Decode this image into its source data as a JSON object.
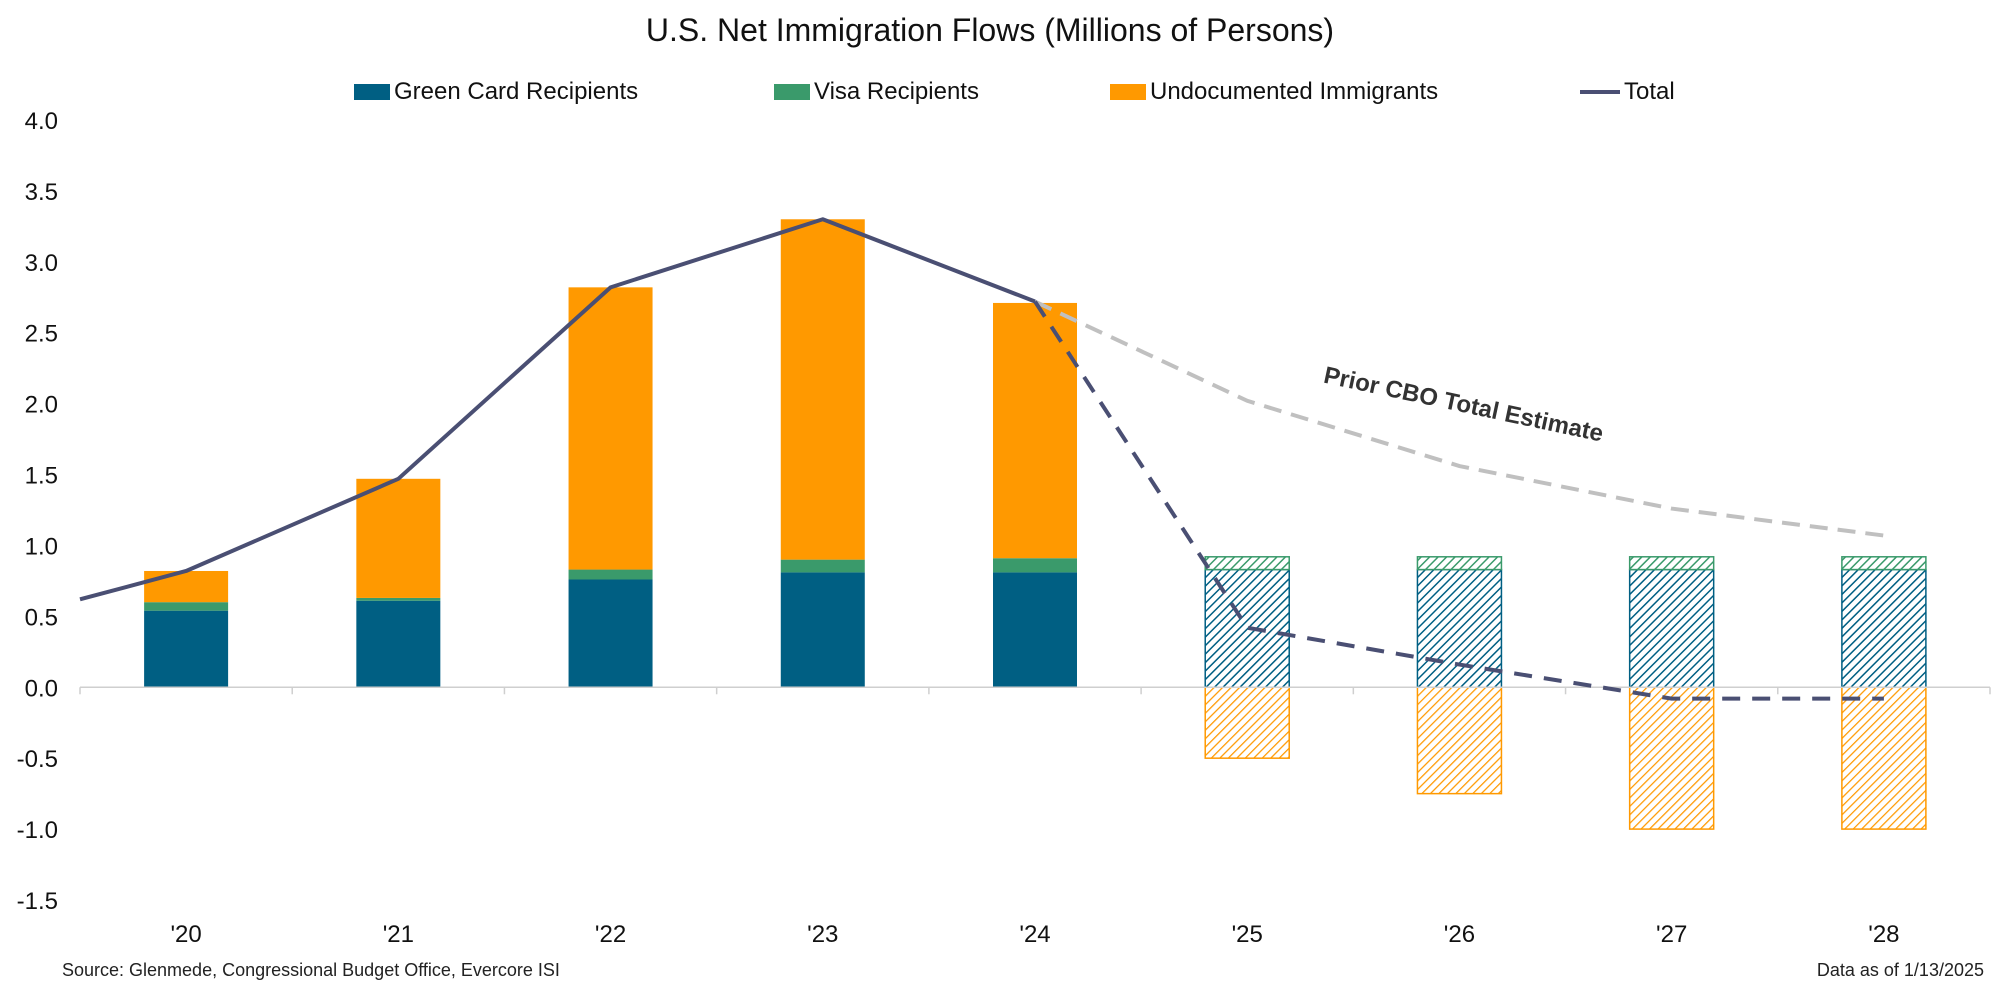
{
  "chart_data": {
    "type": "bar",
    "title": "U.S. Net Immigration Flows (Millions of Persons)",
    "categories": [
      "'20",
      "'21",
      "'22",
      "'23",
      "'24",
      "'25",
      "'26",
      "'27",
      "'28"
    ],
    "ylim": [
      -1.5,
      4.0
    ],
    "yticks": [
      "4.0",
      "3.5",
      "3.0",
      "2.5",
      "2.0",
      "1.5",
      "1.0",
      "0.5",
      "0.0",
      "-0.5",
      "-1.0",
      "-1.5"
    ],
    "ytick_values": [
      4.0,
      3.5,
      3.0,
      2.5,
      2.0,
      1.5,
      1.0,
      0.5,
      0.0,
      -0.5,
      -1.0,
      -1.5
    ],
    "grid": false,
    "legend_position": "top",
    "stacked": true,
    "projected_from_index": 5,
    "series": [
      {
        "name": "Green Card Recipients",
        "color": "#005f83",
        "values": [
          0.54,
          0.61,
          0.76,
          0.81,
          0.81,
          0.83,
          0.83,
          0.83,
          0.83
        ]
      },
      {
        "name": "Visa Recipients",
        "color": "#3a9a6b",
        "values": [
          0.06,
          0.02,
          0.07,
          0.09,
          0.1,
          0.09,
          0.09,
          0.09,
          0.09
        ]
      },
      {
        "name": "Undocumented Immigrants",
        "color": "#ff9900",
        "values": [
          0.22,
          0.84,
          1.99,
          2.4,
          1.8,
          -0.5,
          -0.75,
          -1.0,
          -1.0
        ]
      }
    ],
    "total_line": {
      "name": "Total",
      "color": "#4a4f73",
      "x_index": [
        -0.5,
        0,
        1,
        2,
        3,
        4,
        5,
        6,
        7,
        8
      ],
      "values": [
        0.62,
        0.82,
        1.47,
        2.82,
        3.3,
        2.72,
        0.42,
        0.16,
        -0.08,
        -0.08
      ],
      "dashed_from_index": 4
    },
    "prior_cbo_line": {
      "color": "#c0c0c0",
      "x_index": [
        4,
        5,
        6,
        7,
        8
      ],
      "values": [
        2.72,
        2.02,
        1.56,
        1.26,
        1.07
      ]
    },
    "annotation": "Prior CBO Total Estimate"
  },
  "footer": {
    "source": "Source: Glenmede, Congressional Budget Office, Evercore ISI",
    "as_of": "Data as of 1/13/2025"
  }
}
